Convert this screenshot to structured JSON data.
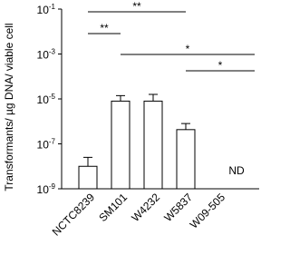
{
  "chart_data": {
    "type": "bar",
    "y_label": "Transformants/ µg DNA/ viable cell",
    "categories": [
      "NCTC8239",
      "SM101",
      "W4232",
      "W5837",
      "W09-505"
    ],
    "values": [
      1e-08,
      8e-06,
      8e-06,
      4.3e-07,
      null
    ],
    "errors": [
      1.5e-08,
      6e-06,
      8e-06,
      3.7e-07,
      null
    ],
    "value_labels": [
      null,
      null,
      null,
      null,
      "ND"
    ],
    "color": "#ffffff",
    "log_scale": true,
    "ylim": [
      1e-09,
      0.1
    ],
    "yticks": [
      {
        "value": 1e-09,
        "label": "10",
        "sup": "-9"
      },
      {
        "value": 1e-07,
        "label": "10",
        "sup": "-7"
      },
      {
        "value": 1e-05,
        "label": "10",
        "sup": "-5"
      },
      {
        "value": 0.001,
        "label": "10",
        "sup": "-3"
      },
      {
        "value": 0.1,
        "label": "10",
        "sup": "-1"
      }
    ],
    "annotations": [
      {
        "from": 0,
        "to": 3,
        "label": "**"
      },
      {
        "from": 0,
        "to": 1,
        "label": "**"
      },
      {
        "from": 1,
        "to": 4,
        "label": "*"
      },
      {
        "from": 3,
        "to": 4,
        "label": "*"
      }
    ]
  }
}
